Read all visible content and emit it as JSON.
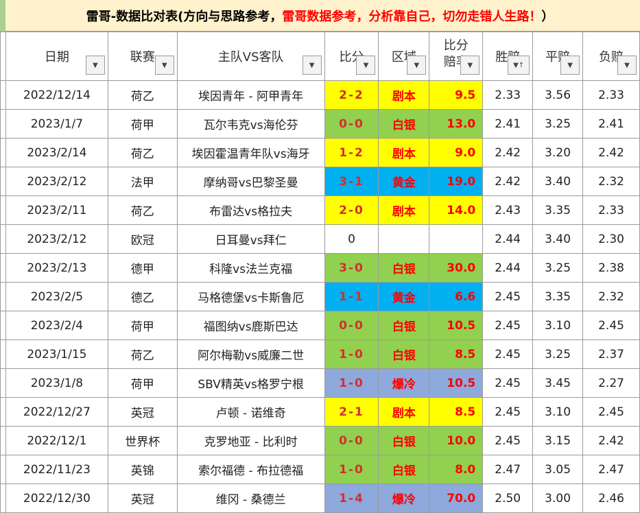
{
  "title": {
    "part1": "雷哥-数据比对表(方向与思路参考，",
    "part2": "雷哥数据参考，分析靠自己，切勿走错人生路！",
    "part3": "）"
  },
  "headers": {
    "date": "日期",
    "league": "联赛",
    "match": "主队VS客队",
    "score": "比分",
    "zone": "区域",
    "odds_line1": "比分",
    "odds_line2": "赔率",
    "win": "胜赔",
    "draw": "平赔",
    "lose": "负赔"
  },
  "icons": {
    "filter": "filter-dropdown-icon",
    "sort": "sort-ascending-icon"
  },
  "colors": {
    "yellow": "#ffff00",
    "green": "#92d050",
    "cyan": "#00b0f0",
    "purple": "#8ea9db",
    "red_text": "#ff0000"
  },
  "rows": [
    {
      "date": "2022/12/14",
      "league": "荷乙",
      "match": "埃因青年 - 阿甲青年",
      "score": "2-2",
      "zone": "剧本",
      "odds": "9.5",
      "win": "2.33",
      "draw": "3.56",
      "lose": "2.33",
      "color": "y"
    },
    {
      "date": "2023/1/7",
      "league": "荷甲",
      "match": "瓦尔韦克vs海伦芬",
      "score": "0-0",
      "zone": "白银",
      "odds": "13.0",
      "win": "2.41",
      "draw": "3.25",
      "lose": "2.41",
      "color": "g"
    },
    {
      "date": "2023/2/14",
      "league": "荷乙",
      "match": "埃因霍温青年队vs海牙",
      "score": "1-2",
      "zone": "剧本",
      "odds": "9.0",
      "win": "2.42",
      "draw": "3.20",
      "lose": "2.42",
      "color": "y"
    },
    {
      "date": "2023/2/12",
      "league": "法甲",
      "match": "摩纳哥vs巴黎圣曼",
      "score": "3-1",
      "zone": "黄金",
      "odds": "19.0",
      "win": "2.42",
      "draw": "3.40",
      "lose": "2.32",
      "color": "c"
    },
    {
      "date": "2023/2/11",
      "league": "荷乙",
      "match": "布雷达vs格拉夫",
      "score": "2-0",
      "zone": "剧本",
      "odds": "14.0",
      "win": "2.43",
      "draw": "3.35",
      "lose": "2.33",
      "color": "y"
    },
    {
      "date": "2023/2/12",
      "league": "欧冠",
      "match": "日耳曼vs拜仁",
      "score": "0",
      "zone": "",
      "odds": "",
      "win": "2.44",
      "draw": "3.40",
      "lose": "2.30",
      "color": "none"
    },
    {
      "date": "2023/2/13",
      "league": "德甲",
      "match": "科隆vs法兰克福",
      "score": "3-0",
      "zone": "白银",
      "odds": "30.0",
      "win": "2.44",
      "draw": "3.25",
      "lose": "2.38",
      "color": "g"
    },
    {
      "date": "2023/2/5",
      "league": "德乙",
      "match": "马格德堡vs卡斯鲁厄",
      "score": "1-1",
      "zone": "黄金",
      "odds": "6.6",
      "win": "2.45",
      "draw": "3.35",
      "lose": "2.32",
      "color": "c"
    },
    {
      "date": "2023/2/4",
      "league": "荷甲",
      "match": "福图纳vs鹿斯巴达",
      "score": "0-0",
      "zone": "白银",
      "odds": "10.5",
      "win": "2.45",
      "draw": "3.10",
      "lose": "2.45",
      "color": "g"
    },
    {
      "date": "2023/1/15",
      "league": "荷乙",
      "match": "阿尔梅勒vs威廉二世",
      "score": "1-0",
      "zone": "白银",
      "odds": "8.5",
      "win": "2.45",
      "draw": "3.25",
      "lose": "2.37",
      "color": "g"
    },
    {
      "date": "2023/1/8",
      "league": "荷甲",
      "match": "SBV精英vs格罗宁根",
      "score": "1-0",
      "zone": "爆冷",
      "odds": "10.5",
      "win": "2.45",
      "draw": "3.45",
      "lose": "2.27",
      "color": "p"
    },
    {
      "date": "2022/12/27",
      "league": "英冠",
      "match": "卢顿 - 诺维奇",
      "score": "2-1",
      "zone": "剧本",
      "odds": "8.5",
      "win": "2.45",
      "draw": "3.10",
      "lose": "2.45",
      "color": "y"
    },
    {
      "date": "2022/12/1",
      "league": "世界杯",
      "match": "克罗地亚 - 比利时",
      "score": "0-0",
      "zone": "白银",
      "odds": "10.0",
      "win": "2.45",
      "draw": "3.15",
      "lose": "2.42",
      "color": "g"
    },
    {
      "date": "2022/11/23",
      "league": "英锦",
      "match": "索尔福德 - 布拉德福",
      "score": "1-0",
      "zone": "白银",
      "odds": "8.0",
      "win": "2.47",
      "draw": "3.05",
      "lose": "2.47",
      "color": "g"
    },
    {
      "date": "2022/12/30",
      "league": "英冠",
      "match": "维冈 - 桑德兰",
      "score": "1-4",
      "zone": "爆冷",
      "odds": "70.0",
      "win": "2.50",
      "draw": "3.00",
      "lose": "2.46",
      "color": "p"
    }
  ]
}
